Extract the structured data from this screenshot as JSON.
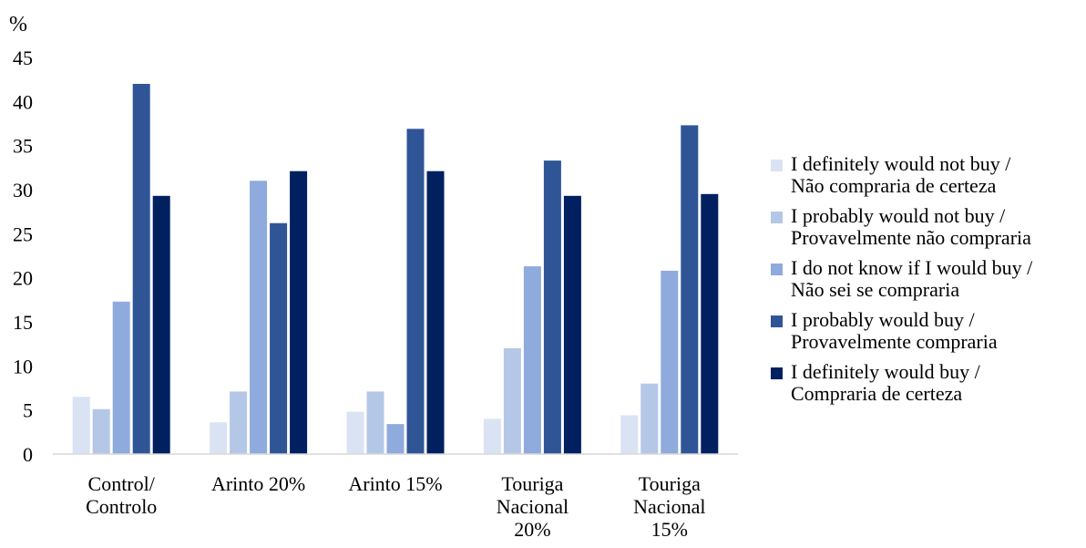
{
  "chart_data": {
    "type": "bar",
    "ylabel": "%",
    "ylim": [
      0,
      45
    ],
    "yticks": [
      "0",
      "5",
      "10",
      "15",
      "20",
      "25",
      "30",
      "35",
      "40",
      "45"
    ],
    "category_labels": [
      [
        "Control/",
        "Controlo"
      ],
      [
        "Arinto 20%"
      ],
      [
        "Arinto 15%"
      ],
      [
        "Touriga",
        "Nacional",
        "20%"
      ],
      [
        "Touriga",
        "Nacional",
        "15%"
      ]
    ],
    "categories": [
      "Control/ Controlo",
      "Arinto 20%",
      "Arinto 15%",
      "Touriga Nacional 20%",
      "Touriga Nacional 15%"
    ],
    "series": [
      {
        "name": "I definitely would not buy / Não compraria de certeza",
        "name_lines": [
          "I definitely would not buy /",
          "Não compraria de certeza"
        ],
        "color": "#dae3f3",
        "values": [
          6.5,
          3.6,
          4.8,
          4.0,
          4.4
        ]
      },
      {
        "name": "I probably would not buy / Provavelmente não compraria",
        "name_lines": [
          "I probably would not buy /",
          "Provavelmente não compraria"
        ],
        "color": "#b4c7e7",
        "values": [
          5.1,
          7.1,
          7.1,
          12.0,
          8.0
        ]
      },
      {
        "name": "I do not know if I would buy / Não sei se compraria",
        "name_lines": [
          "I do not know if I would buy /",
          "Não sei se compraria"
        ],
        "color": "#8faadc",
        "values": [
          17.3,
          31.0,
          3.4,
          21.3,
          20.8
        ]
      },
      {
        "name": "I probably would buy / Provavelmente compraria",
        "name_lines": [
          "I probably would buy /",
          "Provavelmente compraria"
        ],
        "color": "#2f5597",
        "values": [
          42.0,
          26.2,
          36.9,
          33.3,
          37.3
        ]
      },
      {
        "name": "I definitely would buy / Compraria de certeza",
        "name_lines": [
          "I definitely would buy /",
          "Compraria de certeza"
        ],
        "color": "#002060",
        "values": [
          29.3,
          32.1,
          32.1,
          29.3,
          29.5
        ]
      }
    ],
    "grid": false,
    "legend_position": "right"
  }
}
